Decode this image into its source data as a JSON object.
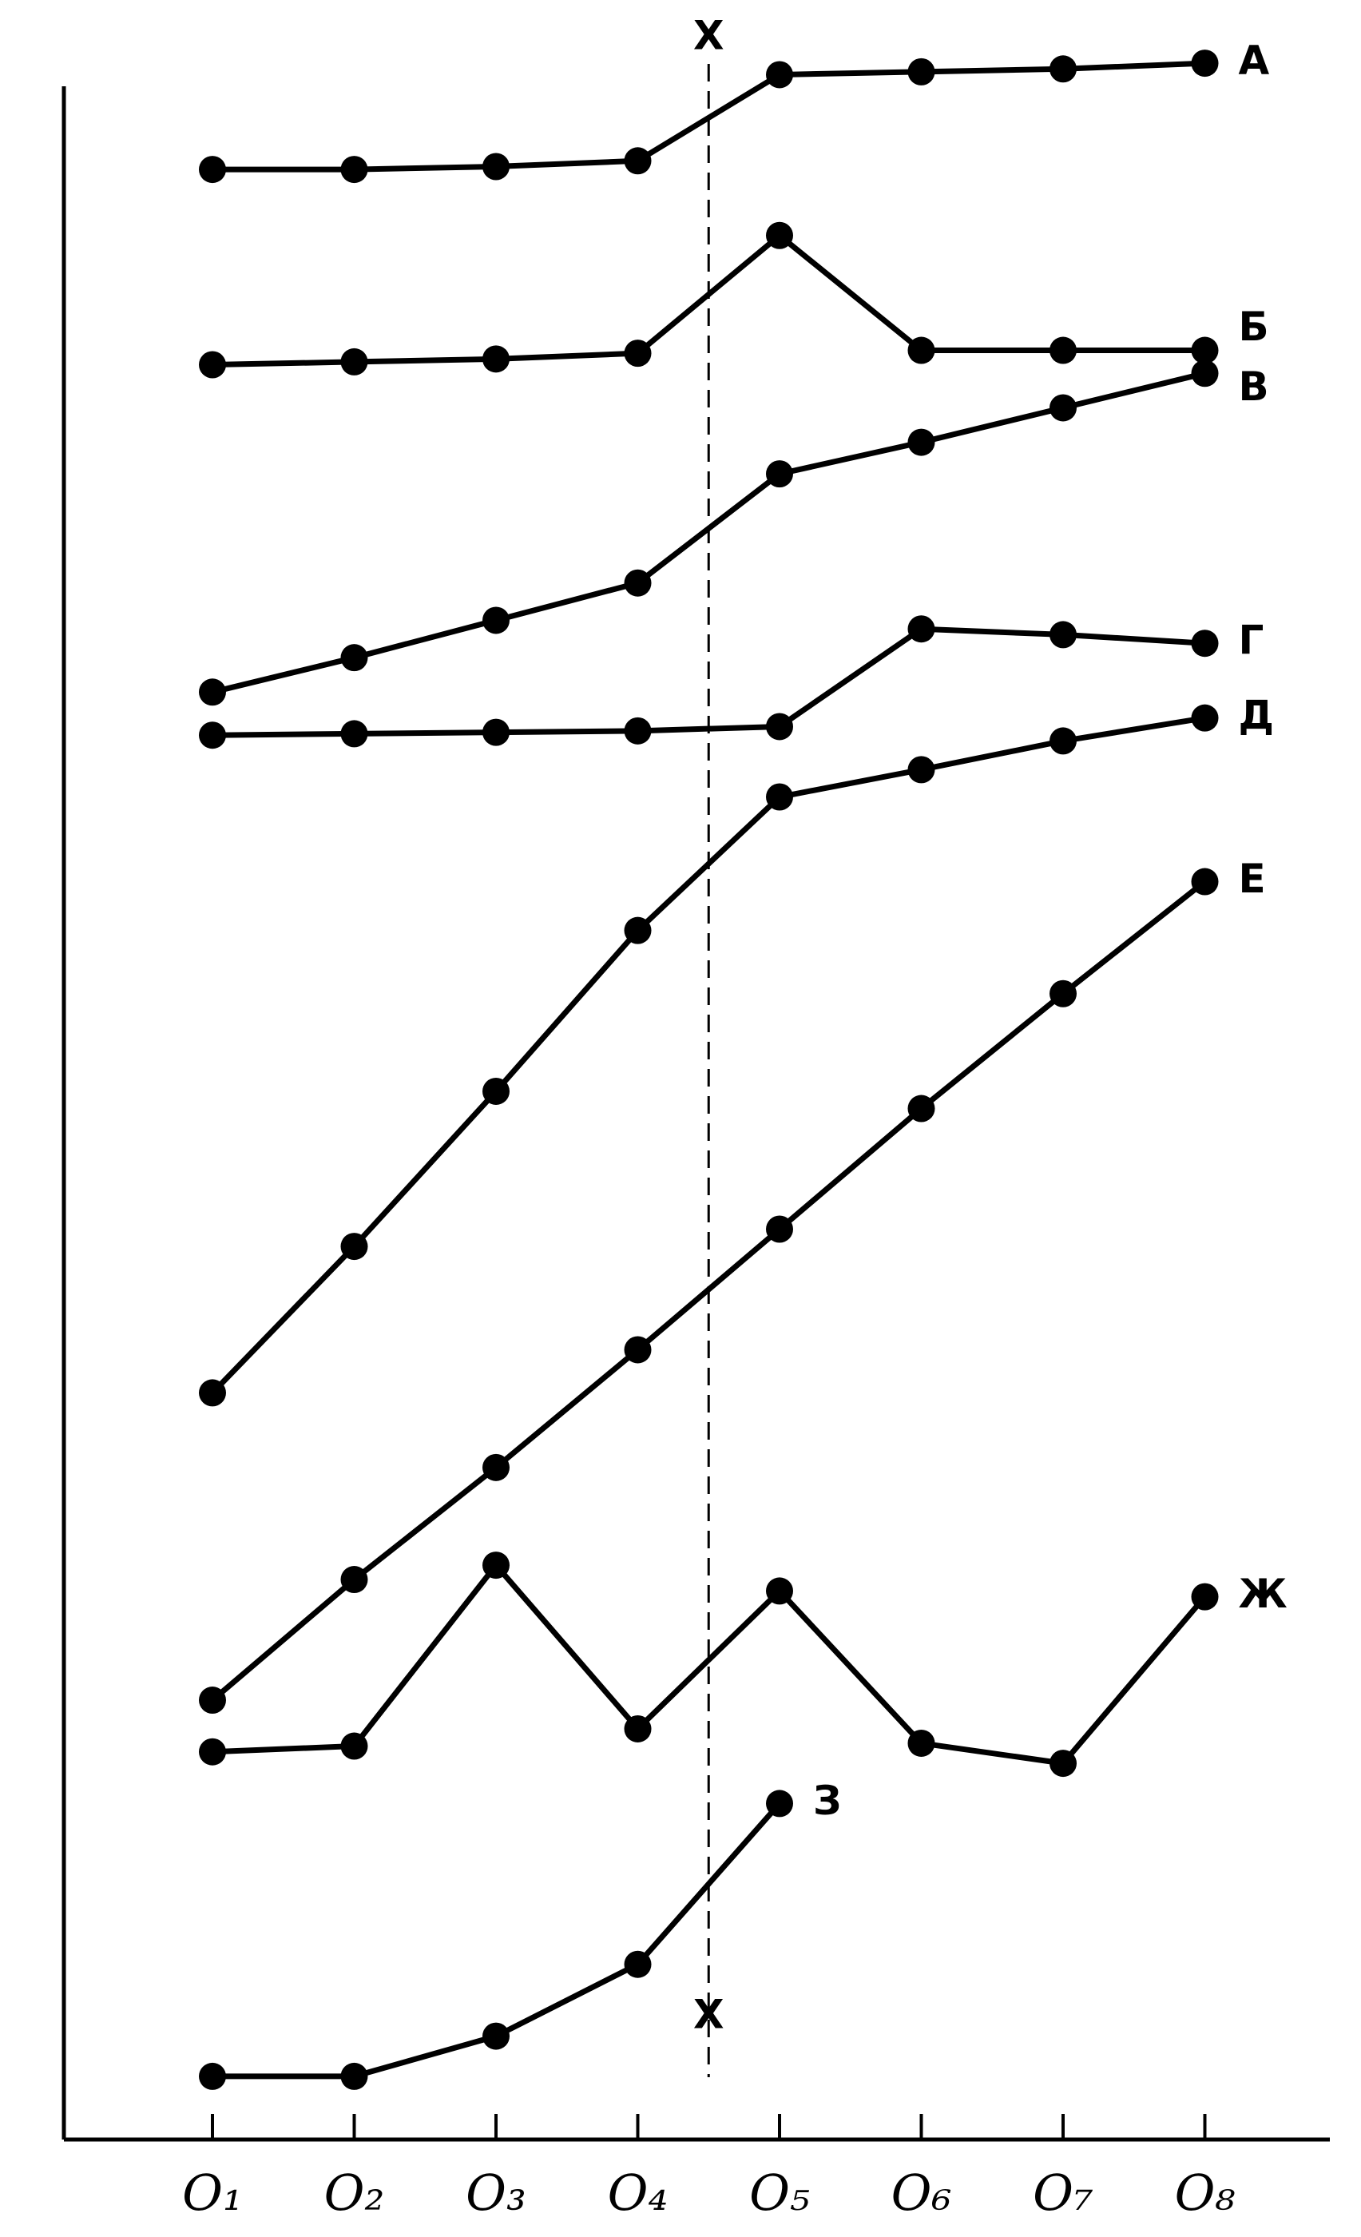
{
  "chart_data": {
    "type": "line",
    "categories": [
      "O₁",
      "O₂",
      "O₃",
      "O₄",
      "O₅",
      "O₆",
      "O₇",
      "O₈"
    ],
    "ylim": [
      0,
      1490
    ],
    "color": "#000000",
    "intervention": {
      "labels": [
        "X",
        "X"
      ],
      "position": 4.5
    },
    "series": [
      {
        "name": "А",
        "values": [
          1372,
          1372,
          1374,
          1378,
          1438,
          1440,
          1442,
          1446
        ]
      },
      {
        "name": "Б",
        "values": [
          1236,
          1238,
          1240,
          1244,
          1326,
          1246,
          1246,
          1246
        ]
      },
      {
        "name": "В",
        "values": [
          1008,
          1032,
          1058,
          1084,
          1160,
          1182,
          1206,
          1230
        ]
      },
      {
        "name": "Г",
        "values": [
          978,
          979,
          980,
          981,
          984,
          1052,
          1048,
          1042
        ]
      },
      {
        "name": "Д",
        "values": [
          520,
          622,
          730,
          842,
          935,
          954,
          974,
          990
        ]
      },
      {
        "name": "Е",
        "values": [
          306,
          390,
          468,
          550,
          634,
          718,
          798,
          876
        ]
      },
      {
        "name": "Ж",
        "values": [
          270,
          274,
          400,
          286,
          382,
          276,
          262,
          378
        ]
      },
      {
        "name": "З",
        "values": [
          44,
          44,
          72,
          122,
          234,
          null,
          null,
          null
        ]
      }
    ]
  }
}
